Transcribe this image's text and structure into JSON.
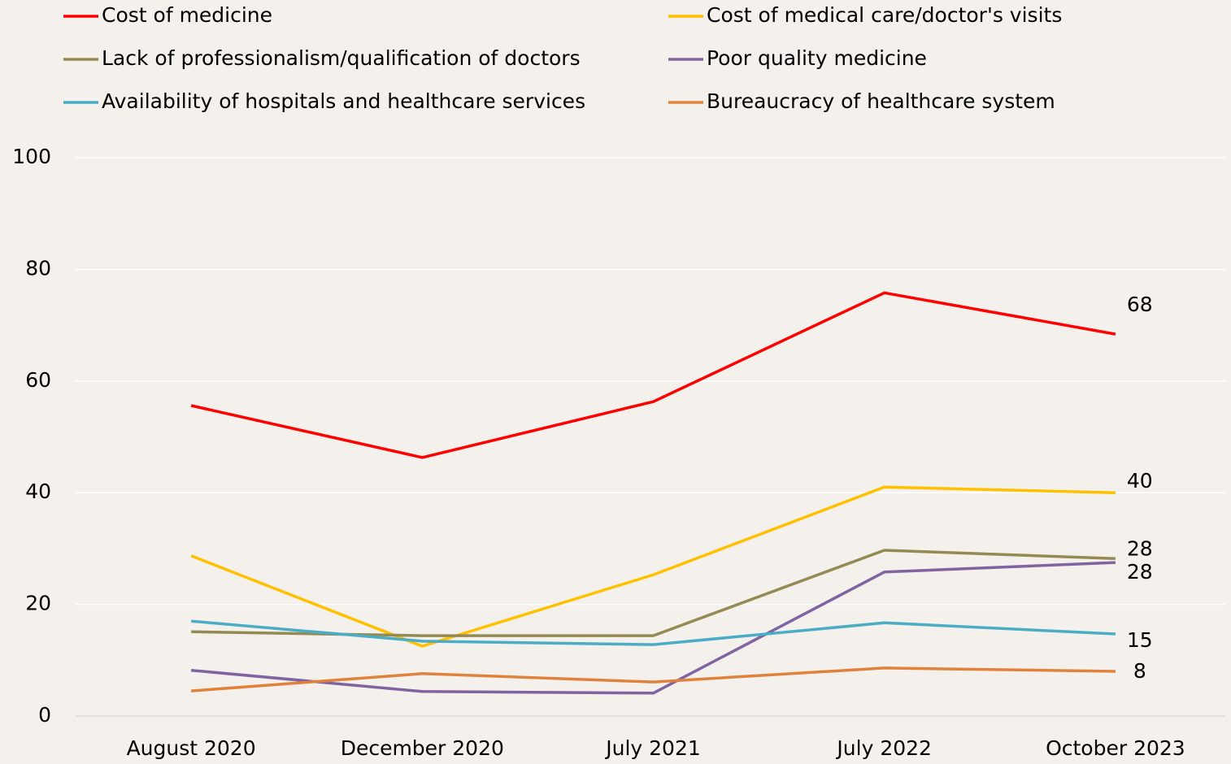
{
  "chart_data": {
    "type": "line",
    "categories": [
      "August 2020",
      "December 2020",
      "July 2021",
      "July 2022",
      "October 2023"
    ],
    "series": [
      {
        "name": "Cost of medicine",
        "color": "#ff0000",
        "values": [
          55.6,
          46.3,
          56.3,
          75.8,
          68.4
        ],
        "value_labels": [
          null,
          null,
          null,
          null,
          "68"
        ]
      },
      {
        "name": "Cost of medical care/doctor's visits",
        "color": "#ffc000",
        "values": [
          28.7,
          12.5,
          25.3,
          41.0,
          40.0
        ],
        "value_labels": [
          null,
          null,
          null,
          null,
          "40"
        ]
      },
      {
        "name": "Lack of professionalism/qualification of doctors",
        "color": "#948a54",
        "values": [
          15.1,
          14.4,
          14.4,
          29.7,
          28.2
        ],
        "value_labels": [
          null,
          null,
          null,
          null,
          "28"
        ]
      },
      {
        "name": "Poor quality medicine",
        "color": "#8064a2",
        "values": [
          8.2,
          4.4,
          4.1,
          25.8,
          27.5
        ],
        "value_labels": [
          null,
          null,
          null,
          null,
          "28"
        ]
      },
      {
        "name": "Availability of hospitals and healthcare services",
        "color": "#4bacc6",
        "values": [
          17.0,
          13.4,
          12.8,
          16.7,
          14.7
        ],
        "value_labels": [
          null,
          null,
          null,
          null,
          "15"
        ]
      },
      {
        "name": "Bureaucracy of healthcare system",
        "color": "#e0823c",
        "values": [
          4.5,
          7.6,
          6.1,
          8.6,
          8.0
        ],
        "value_labels": [
          null,
          null,
          null,
          null,
          "8"
        ]
      }
    ],
    "ylim": [
      0,
      100
    ],
    "yticks": [
      0,
      20,
      40,
      60,
      80,
      100
    ],
    "grid": true
  }
}
